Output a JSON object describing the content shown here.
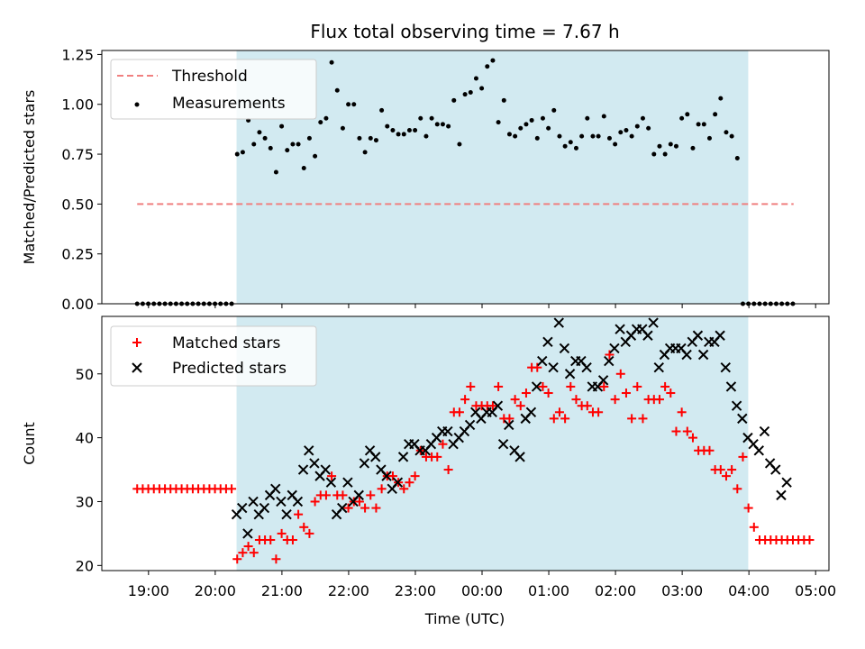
{
  "chart_data": {
    "type": "scatter",
    "title": "Flux total observing time = 7.67 h",
    "xlabel": "Time (UTC)",
    "x_tick_labels": [
      "19:00",
      "20:00",
      "21:00",
      "22:00",
      "23:00",
      "00:00",
      "01:00",
      "02:00",
      "03:00",
      "04:00",
      "05:00"
    ],
    "colors": {
      "threshold": "#f08080",
      "measurements": "#000000",
      "matched": "#ff0000",
      "predicted": "#000000",
      "shade": "#add8e6"
    },
    "observing_window_hours": [
      20.32,
      27.99
    ],
    "xlim_hours": [
      18.3,
      29.2
    ],
    "panels": [
      {
        "ylabel": "Matched/Predicted stars",
        "ylim": [
          0,
          1.27
        ],
        "y_tick_labels": [
          "0.00",
          "0.25",
          "0.50",
          "0.75",
          "1.00",
          "1.25"
        ],
        "legend_position": "upper left",
        "series": [
          {
            "name": "Threshold",
            "kind": "dashed-line",
            "x": [
              18.83,
              28.67
            ],
            "y": [
              0.5,
              0.5
            ]
          },
          {
            "name": "Measurements",
            "kind": "dot",
            "t0": 18.83,
            "dt": 0.0833,
            "y": [
              0,
              0,
              0,
              0,
              0,
              0,
              0,
              0,
              0,
              0,
              0,
              0,
              0,
              0,
              0,
              0,
              0,
              0,
              0.75,
              0.76,
              0.92,
              0.8,
              0.86,
              0.83,
              0.78,
              0.66,
              0.89,
              0.77,
              0.8,
              0.8,
              0.68,
              0.83,
              0.74,
              0.91,
              0.93,
              1.21,
              1.07,
              0.88,
              1.0,
              1.0,
              0.83,
              0.76,
              0.83,
              0.82,
              0.97,
              0.89,
              0.87,
              0.85,
              0.85,
              0.87,
              0.87,
              0.93,
              0.84,
              0.93,
              0.9,
              0.9,
              0.89,
              1.02,
              0.8,
              1.05,
              1.06,
              1.13,
              1.08,
              1.19,
              1.22,
              0.91,
              1.02,
              0.85,
              0.84,
              0.88,
              0.9,
              0.92,
              0.83,
              0.93,
              0.88,
              0.97,
              0.84,
              0.79,
              0.81,
              0.78,
              0.84,
              0.93,
              0.84,
              0.84,
              0.94,
              0.83,
              0.8,
              0.86,
              0.87,
              0.84,
              0.89,
              0.93,
              0.88,
              0.75,
              0.79,
              0.75,
              0.8,
              0.79,
              0.93,
              0.95,
              0.78,
              0.9,
              0.9,
              0.83,
              0.95,
              1.03,
              0.86,
              0.84,
              0.73,
              0,
              0,
              0,
              0,
              0,
              0,
              0,
              0,
              0,
              0
            ]
          }
        ]
      },
      {
        "ylabel": "Count",
        "ylim": [
          19.2,
          59
        ],
        "y_tick_labels": [
          "20",
          "30",
          "40",
          "50"
        ],
        "legend_position": "upper left",
        "series": [
          {
            "name": "Matched stars",
            "marker": "+",
            "t0": 18.83,
            "dt": 0.0833,
            "y": [
              32,
              32,
              32,
              32,
              32,
              32,
              32,
              32,
              32,
              32,
              32,
              32,
              32,
              32,
              32,
              32,
              32,
              32,
              21,
              22,
              23,
              22,
              24,
              24,
              24,
              21,
              25,
              24,
              24,
              28,
              26,
              25,
              30,
              31,
              31,
              34,
              31,
              31,
              29,
              30,
              30,
              29,
              31,
              29,
              32,
              34,
              34,
              33,
              32,
              33,
              34,
              38,
              37,
              37,
              37,
              39,
              35,
              44,
              44,
              46,
              48,
              45,
              45,
              45,
              45,
              48,
              43,
              43,
              46,
              45,
              47,
              51,
              51,
              48,
              47,
              43,
              44,
              43,
              48,
              46,
              45,
              45,
              44,
              44,
              48,
              53,
              46,
              50,
              47,
              43,
              48,
              43,
              46,
              46,
              46,
              48,
              47,
              41,
              44,
              41,
              40,
              38,
              38,
              38,
              35,
              35,
              34,
              35,
              32,
              37,
              29,
              26,
              24,
              24,
              24,
              24,
              24,
              24,
              24,
              24,
              24,
              24
            ]
          },
          {
            "name": "Predicted stars",
            "marker": "x",
            "t0": 20.32,
            "dt": 0.0833,
            "y": [
              28,
              29,
              25,
              30,
              28,
              29,
              31,
              32,
              30,
              28,
              31,
              30,
              35,
              38,
              36,
              34,
              35,
              33,
              28,
              29,
              33,
              30,
              31,
              36,
              38,
              37,
              35,
              34,
              32,
              33,
              37,
              39,
              39,
              38,
              38,
              39,
              40,
              41,
              41,
              39,
              40,
              41,
              42,
              44,
              43,
              44,
              44,
              45,
              39,
              42,
              38,
              37,
              43,
              44,
              48,
              52,
              55,
              51,
              58,
              54,
              50,
              52,
              52,
              51,
              48,
              48,
              49,
              52,
              54,
              57,
              55,
              56,
              57,
              57,
              56,
              58,
              51,
              53,
              54,
              54,
              54,
              53,
              55,
              56,
              53,
              55,
              55,
              56,
              51,
              48,
              45,
              43,
              40,
              39,
              38,
              41,
              36,
              35,
              31,
              33
            ]
          }
        ]
      }
    ]
  }
}
